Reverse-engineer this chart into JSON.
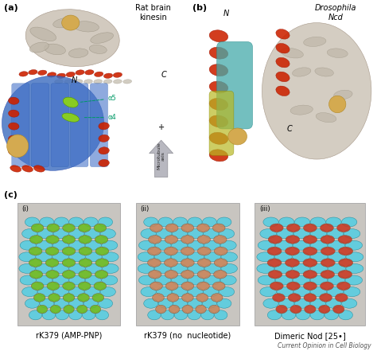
{
  "figure_bg": "#ffffff",
  "panel_a_label": "(a)",
  "panel_b_label": "(b)",
  "panel_c_label": "(c)",
  "panel_a_title": "Rat brain\nkinesin",
  "panel_b_title": "Drosophila\nNcd",
  "subpanel_i_label": "(i)",
  "subpanel_ii_label": "(ii)",
  "subpanel_iii_label": "(iii)",
  "caption_i": "rK379 (AMP-PNP)",
  "caption_ii": "rK379 (no  nucleotide)",
  "caption_iii": "Dimeric Nod [25•]",
  "journal_text": "Current Opinion in Cell Biology",
  "arrow_label": "Microtubule\naxis",
  "arrow_plus": "+",
  "alpha5_label": "α5",
  "alpha4_label": "α4",
  "label_N_a": "N",
  "label_C_a": "C",
  "label_N_b": "N",
  "label_C_b": "C",
  "panel_c_i_colors": {
    "microtubule": "#5ccde0",
    "kinesin": "#6abb1e",
    "bg": "#c8c5c0"
  },
  "panel_c_ii_colors": {
    "microtubule": "#5ccde0",
    "kinesin": "#c8845a",
    "bg": "#c8c5c0"
  },
  "panel_c_iii_colors": {
    "microtubule": "#5ccde0",
    "kinesin": "#c83822",
    "bg": "#c8c5c0"
  },
  "label_fontsize": 8,
  "caption_fontsize": 7,
  "journal_fontsize": 5.5,
  "panel_label_fontsize": 8,
  "title_fontsize": 7,
  "annotation_fontsize": 6
}
